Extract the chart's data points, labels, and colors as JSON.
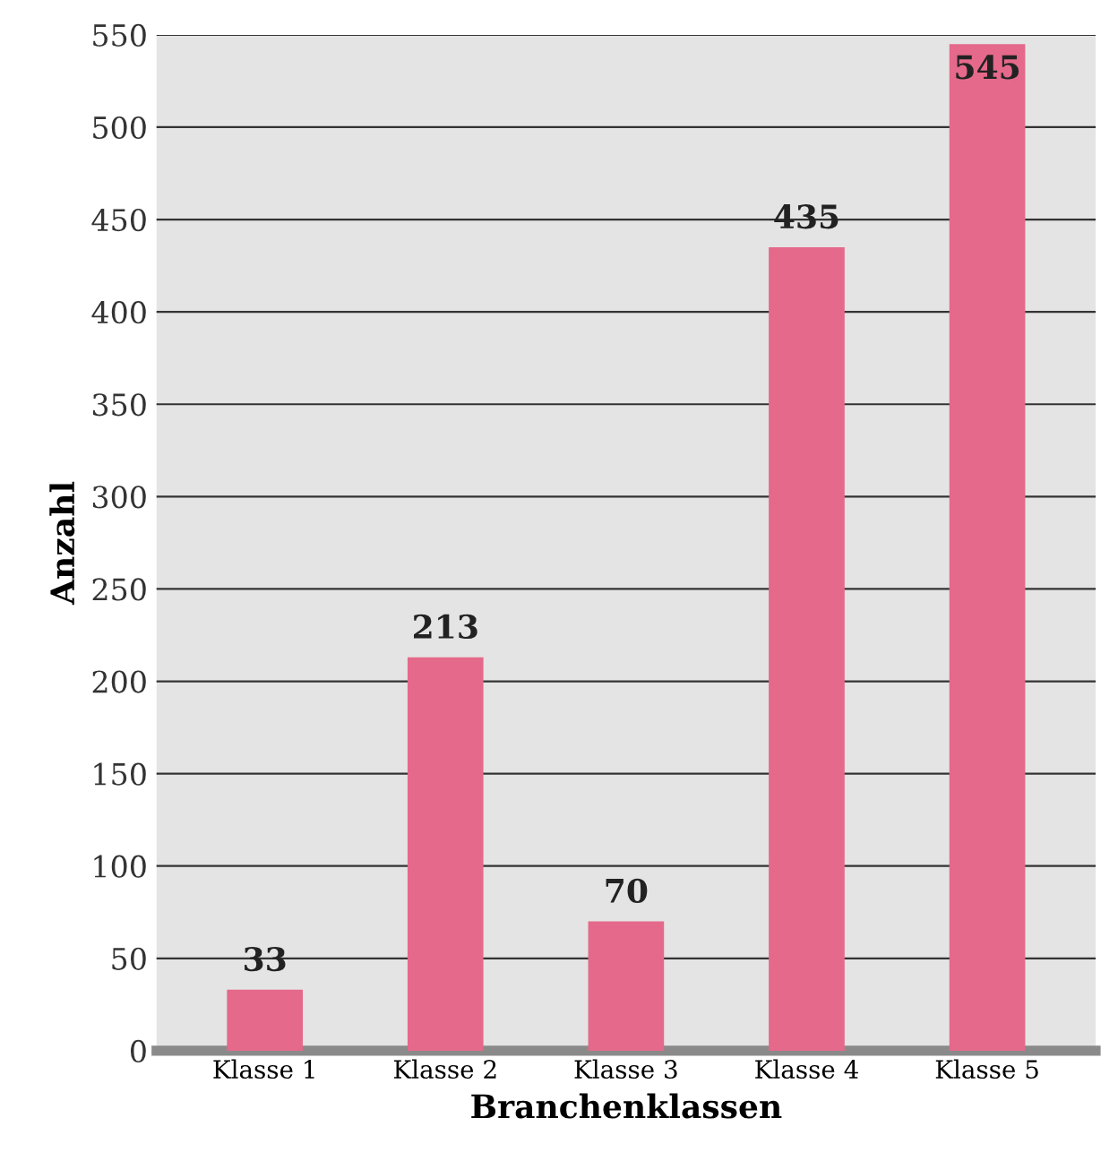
{
  "chart_data": {
    "type": "bar",
    "xlabel": "Branchenklassen",
    "ylabel": "Anzahl",
    "categories": [
      "Klasse 1",
      "Klasse 2",
      "Klasse 3",
      "Klasse 4",
      "Klasse 5"
    ],
    "values": [
      33,
      213,
      70,
      435,
      545
    ],
    "color": "#e5698a",
    "ylim": [
      0,
      550
    ],
    "yticks": [
      0,
      50,
      100,
      150,
      200,
      250,
      300,
      350,
      400,
      450,
      500,
      550
    ],
    "grid": "y",
    "data_labels": true
  }
}
